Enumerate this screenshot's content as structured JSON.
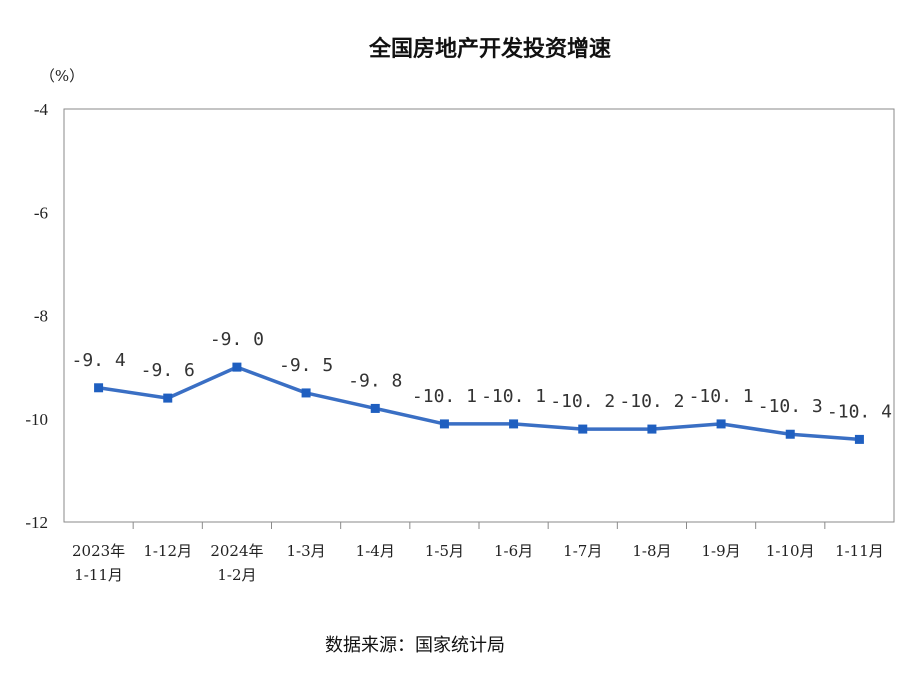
{
  "chart_data": {
    "type": "line",
    "title": "全国房地产开发投资增速",
    "ylabel": "（%）",
    "ylim": [
      -12,
      -4
    ],
    "yticks": [
      -4,
      -6,
      -8,
      -10,
      -12
    ],
    "categories": [
      [
        "2023年",
        "1-11月"
      ],
      [
        "1-12月"
      ],
      [
        "2024年",
        "1-2月"
      ],
      [
        "1-3月"
      ],
      [
        "1-4月"
      ],
      [
        "1-5月"
      ],
      [
        "1-6月"
      ],
      [
        "1-7月"
      ],
      [
        "1-8月"
      ],
      [
        "1-9月"
      ],
      [
        "1-10月"
      ],
      [
        "1-11月"
      ]
    ],
    "values": [
      -9.4,
      -9.6,
      -9.0,
      -9.5,
      -9.8,
      -10.1,
      -10.1,
      -10.2,
      -10.2,
      -10.1,
      -10.3,
      -10.4
    ],
    "value_labels": [
      "-9. 4",
      "-9. 6",
      "-9. 0",
      "-9. 5",
      "-9. 8",
      "-10. 1",
      "-10. 1",
      "-10. 2",
      "-10. 2",
      "-10. 1",
      "-10. 3",
      "-10. 4"
    ],
    "grid": false,
    "line_color": "#3a6fc4"
  },
  "source": "数据来源：国家统计局"
}
